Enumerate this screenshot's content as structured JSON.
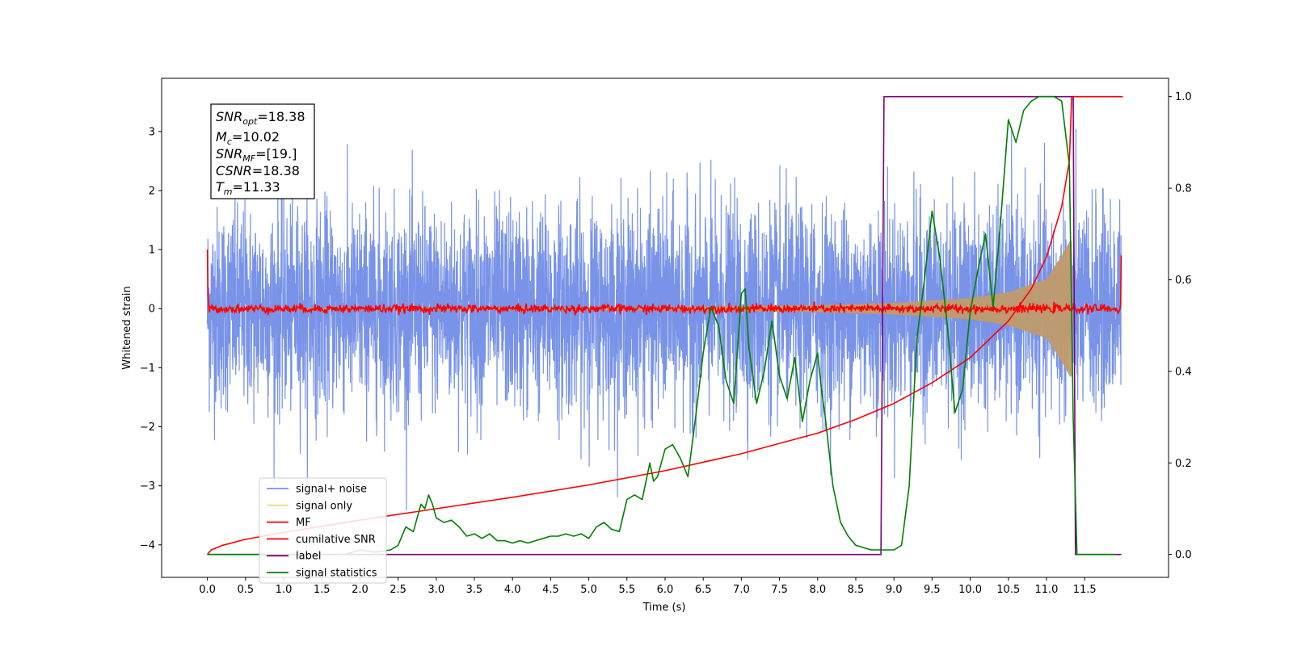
{
  "chart_data": {
    "type": "line",
    "xlabel": "Time (s)",
    "ylabel": "Whitened strain",
    "xlim": [
      -0.6,
      12.6
    ],
    "ylim": [
      -4.55,
      3.9
    ],
    "ylim_right": [
      -0.05,
      1.04
    ],
    "x_ticks": [
      0.0,
      0.5,
      1.0,
      1.5,
      2.0,
      2.5,
      3.0,
      3.5,
      4.0,
      4.5,
      5.0,
      5.5,
      6.0,
      6.5,
      7.0,
      7.5,
      8.0,
      8.5,
      9.0,
      9.5,
      10.0,
      10.5,
      11.0,
      11.5
    ],
    "x_tick_labels": [
      "0.0",
      "0.5",
      "1.0",
      "1.5",
      "2.0",
      "2.5",
      "3.0",
      "3.5",
      "4.0",
      "4.5",
      "5.0",
      "5.5",
      "6.0",
      "6.5",
      "7.0",
      "7.5",
      "8.0",
      "8.5",
      "9.0",
      "9.5",
      "10.0",
      "10.5",
      "11.0",
      "11.5"
    ],
    "y_ticks": [
      3,
      2,
      1,
      0,
      -1,
      -2,
      -3,
      -4
    ],
    "y_tick_labels": [
      "3",
      "2",
      "1",
      "0",
      "−1",
      "−2",
      "−3",
      "−4"
    ],
    "y_ticks_right": [
      1.0,
      0.8,
      0.6,
      0.4,
      0.2,
      0.0
    ],
    "y_tick_labels_right": [
      "1.0",
      "0.8",
      "0.6",
      "0.4",
      "0.2",
      "0.0"
    ],
    "info_box": {
      "snr_opt": {
        "base": "SNR",
        "sub": "opt",
        "value": "=18.38"
      },
      "mc": {
        "base": "M",
        "sub": "c",
        "value": "=10.02"
      },
      "snr_mf": {
        "base": "SNR",
        "sub": "MF",
        "value": "=[19.]"
      },
      "csnr": {
        "base": "CSNR",
        "sub": "",
        "value": "=18.38"
      },
      "tm": {
        "base": "T",
        "sub": "m",
        "value": "=11.33"
      }
    },
    "legend": {
      "position": "lower-left",
      "entries": [
        {
          "label": "signal+ noise",
          "color": "#7893e8"
        },
        {
          "label": "signal only",
          "color": "#f5d48a"
        },
        {
          "label": "MF",
          "color": "#ff0000"
        },
        {
          "label": "cumilative SNR",
          "color": "#ff0000"
        },
        {
          "label": "label",
          "color": "#800080"
        },
        {
          "label": "signal statistics",
          "color": "#008000"
        }
      ]
    },
    "series": [
      {
        "name": "signal+ noise",
        "color": "#7893e8",
        "description_values": {
          "t_start": 0.0,
          "t_end": 11.98,
          "amplitude_std": 0.85,
          "max": 3.15,
          "min": -4.15
        }
      },
      {
        "name": "signal only",
        "color": "#c09a6b",
        "envelope": {
          "t": [
            0.0,
            2.0,
            4.0,
            6.0,
            8.0,
            9.0,
            10.0,
            10.5,
            11.0,
            11.2,
            11.33,
            11.35
          ],
          "amp": [
            0.01,
            0.015,
            0.02,
            0.03,
            0.06,
            0.1,
            0.18,
            0.28,
            0.5,
            0.9,
            1.2,
            0.0
          ]
        }
      },
      {
        "name": "MF",
        "color": "#ff0000",
        "description_values": {
          "t_start": 0.0,
          "t_end": 11.98,
          "noise_amp": 0.06,
          "start_value": 1.0,
          "end_value": 0.9
        }
      },
      {
        "name": "cumilative SNR",
        "color": "#ff0000",
        "axis": "right",
        "t": [
          0.0,
          0.05,
          0.2,
          0.5,
          1.0,
          2.0,
          3.0,
          4.0,
          5.0,
          6.0,
          7.0,
          8.0,
          8.5,
          9.0,
          9.5,
          10.0,
          10.5,
          10.8,
          11.0,
          11.2,
          11.3,
          11.33,
          11.5,
          12.0
        ],
        "values": [
          0.0,
          0.01,
          0.02,
          0.033,
          0.048,
          0.075,
          0.1,
          0.125,
          0.152,
          0.183,
          0.22,
          0.265,
          0.295,
          0.33,
          0.375,
          0.43,
          0.51,
          0.58,
          0.65,
          0.76,
          0.86,
          1.0,
          1.0,
          1.0
        ]
      },
      {
        "name": "label",
        "color": "#800080",
        "axis": "right",
        "t": [
          0.0,
          8.83,
          8.87,
          11.35,
          11.38,
          11.98
        ],
        "values": [
          0.0,
          0.0,
          1.0,
          1.0,
          0.0,
          0.0
        ]
      },
      {
        "name": "signal statistics",
        "color": "#008000",
        "axis": "right",
        "t": [
          0.0,
          0.5,
          1.0,
          1.5,
          1.8,
          2.0,
          2.2,
          2.4,
          2.5,
          2.6,
          2.7,
          2.8,
          2.85,
          2.9,
          2.95,
          3.0,
          3.1,
          3.2,
          3.3,
          3.4,
          3.5,
          3.6,
          3.7,
          3.8,
          3.9,
          4.0,
          4.1,
          4.2,
          4.3,
          4.4,
          4.5,
          4.6,
          4.7,
          4.8,
          4.9,
          5.0,
          5.1,
          5.2,
          5.3,
          5.4,
          5.5,
          5.6,
          5.7,
          5.8,
          5.85,
          5.9,
          6.0,
          6.1,
          6.2,
          6.3,
          6.4,
          6.5,
          6.6,
          6.7,
          6.8,
          6.9,
          7.0,
          7.05,
          7.1,
          7.2,
          7.3,
          7.4,
          7.5,
          7.6,
          7.7,
          7.8,
          7.9,
          8.0,
          8.05,
          8.1,
          8.2,
          8.3,
          8.4,
          8.5,
          8.6,
          8.7,
          8.8,
          8.9,
          9.0,
          9.1,
          9.2,
          9.3,
          9.4,
          9.5,
          9.6,
          9.7,
          9.8,
          9.9,
          10.0,
          10.1,
          10.2,
          10.3,
          10.4,
          10.5,
          10.6,
          10.7,
          10.8,
          10.9,
          11.0,
          11.1,
          11.2,
          11.3,
          11.35,
          11.4,
          11.5,
          11.9
        ],
        "values": [
          0.0,
          0.0,
          0.0,
          0.0,
          0.0,
          0.01,
          0.005,
          0.01,
          0.02,
          0.06,
          0.05,
          0.11,
          0.1,
          0.13,
          0.11,
          0.08,
          0.07,
          0.075,
          0.06,
          0.04,
          0.045,
          0.035,
          0.045,
          0.03,
          0.03,
          0.025,
          0.03,
          0.025,
          0.03,
          0.035,
          0.04,
          0.04,
          0.045,
          0.04,
          0.045,
          0.035,
          0.06,
          0.07,
          0.055,
          0.05,
          0.12,
          0.13,
          0.12,
          0.2,
          0.16,
          0.17,
          0.23,
          0.24,
          0.21,
          0.17,
          0.3,
          0.44,
          0.54,
          0.5,
          0.38,
          0.33,
          0.57,
          0.58,
          0.45,
          0.33,
          0.4,
          0.51,
          0.39,
          0.34,
          0.43,
          0.29,
          0.38,
          0.44,
          0.36,
          0.3,
          0.15,
          0.07,
          0.04,
          0.02,
          0.015,
          0.01,
          0.01,
          0.01,
          0.01,
          0.02,
          0.15,
          0.47,
          0.6,
          0.75,
          0.65,
          0.5,
          0.31,
          0.36,
          0.53,
          0.62,
          0.7,
          0.54,
          0.73,
          0.95,
          0.9,
          0.97,
          0.99,
          1.0,
          1.0,
          1.0,
          0.99,
          0.85,
          0.3,
          0.0,
          0.0,
          0.0
        ]
      }
    ]
  }
}
